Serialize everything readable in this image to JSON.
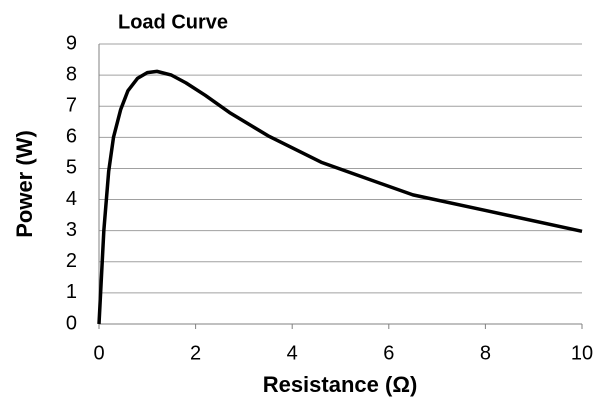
{
  "chart_data": {
    "type": "line",
    "title": "Load Curve",
    "x_label": "Resistance (Ω)",
    "y_label": "Power (W)",
    "x": [
      0,
      0.05,
      0.1,
      0.2,
      0.3,
      0.45,
      0.6,
      0.8,
      1.0,
      1.2,
      1.5,
      1.8,
      2.2,
      2.7,
      3.5,
      4.6,
      5.5,
      6.5,
      8,
      10
    ],
    "series": [
      {
        "name": "Power",
        "color": "#000000",
        "values": [
          0,
          1.5,
          3.0,
          4.9,
          6.0,
          6.9,
          7.5,
          7.9,
          8.08,
          8.12,
          8.0,
          7.75,
          7.35,
          6.8,
          6.05,
          5.2,
          4.7,
          4.15,
          3.65,
          2.98
        ]
      }
    ],
    "xlim": [
      0,
      10
    ],
    "xticks": [
      0,
      2,
      4,
      6,
      8,
      10
    ],
    "ylim": [
      0,
      9
    ],
    "yticks": [
      0,
      1,
      2,
      3,
      4,
      5,
      6,
      7,
      8,
      9
    ],
    "grid": true
  }
}
